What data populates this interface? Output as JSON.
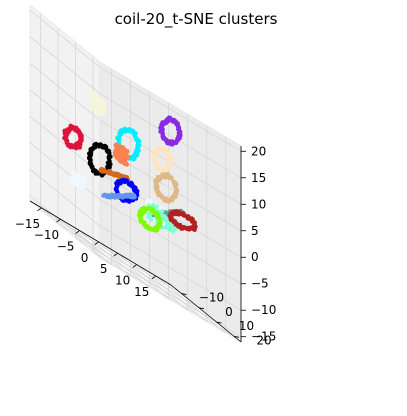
{
  "chart_data": {
    "type": "scatter",
    "projection": "3d",
    "title": "coil-20_t-SNE clusters",
    "xlabel": "",
    "ylabel": "",
    "zlabel": "",
    "grid": true,
    "xlim": [
      -18,
      19
    ],
    "ylim": [
      -16,
      24
    ],
    "zlim": [
      -16,
      21
    ],
    "x_ticks": [
      -15,
      -10,
      -5,
      0,
      5,
      10,
      15
    ],
    "y_ticks": [
      -10,
      0,
      10,
      20
    ],
    "z_ticks": [
      -15,
      -10,
      -5,
      0,
      5,
      10,
      15,
      20
    ],
    "x_tick_labels": [
      "−15",
      "−10",
      "−5",
      "0",
      "5",
      "10",
      "15"
    ],
    "y_tick_labels": [
      "−10",
      "0",
      "10",
      "20"
    ],
    "z_tick_labels": [
      "−15",
      "−10",
      "−5",
      "0",
      "5",
      "10",
      "15",
      "20"
    ],
    "clusters": [
      {
        "color": "#8a2be2",
        "shape": "ring",
        "center": [
          6,
          12,
          15
        ],
        "radius": [
          2.2,
          1.5,
          2.5
        ]
      },
      {
        "color": "#f5f5dc",
        "shape": "blob",
        "center": [
          -14,
          14,
          12
        ],
        "radius": [
          1.5,
          1.0,
          1.5
        ]
      },
      {
        "color": "#00eeff",
        "shape": "ring",
        "center": [
          -6,
          14,
          8
        ],
        "radius": [
          2.5,
          1.5,
          3.0
        ]
      },
      {
        "color": "#ffe4c4",
        "shape": "ring",
        "center": [
          2,
          16,
          9
        ],
        "radius": [
          2.0,
          1.0,
          2.0
        ]
      },
      {
        "color": "#ff8050",
        "shape": "blob",
        "center": [
          -6,
          10,
          5
        ],
        "radius": [
          1.5,
          1.0,
          1.5
        ]
      },
      {
        "color": "#deb887",
        "shape": "ring",
        "center": [
          4,
          14,
          4
        ],
        "radius": [
          2.5,
          1.5,
          2.5
        ]
      },
      {
        "color": "#000000",
        "shape": "ring",
        "center": [
          -8,
          2,
          1
        ],
        "radius": [
          2.5,
          2.0,
          3.0
        ]
      },
      {
        "color": "#dc143c",
        "shape": "ring",
        "center": [
          -14,
          0,
          2
        ],
        "radius": [
          2.0,
          1.5,
          2.0
        ]
      },
      {
        "color": "#d2691e",
        "shape": "line",
        "center": [
          -5,
          4,
          0
        ],
        "radius": [
          3.0,
          1.5,
          0.8
        ]
      },
      {
        "color": "#f0f8ff",
        "shape": "blob",
        "center": [
          2,
          12,
          -2
        ],
        "radius": [
          2.0,
          1.0,
          1.5
        ]
      },
      {
        "color": "#0000ff",
        "shape": "ring",
        "center": [
          -1,
          2,
          -2
        ],
        "radius": [
          2.5,
          2.0,
          2.0
        ]
      },
      {
        "color": "#5f9ea0",
        "shape": "line",
        "center": [
          6,
          10,
          -1
        ],
        "radius": [
          3.0,
          2.0,
          2.0
        ]
      },
      {
        "color": "#6495ed",
        "shape": "line",
        "center": [
          -1,
          -2,
          -4
        ],
        "radius": [
          3.0,
          2.5,
          2.0
        ]
      },
      {
        "color": "#7fffd4",
        "shape": "blob",
        "center": [
          7,
          4,
          -3
        ],
        "radius": [
          4.0,
          2.5,
          1.5
        ]
      },
      {
        "color": "#b22222",
        "shape": "ring",
        "center": [
          12,
          6,
          -1
        ],
        "radius": [
          3.0,
          2.0,
          1.5
        ]
      },
      {
        "color": "#7cfc00",
        "shape": "ring",
        "center": [
          8,
          -4,
          -5
        ],
        "radius": [
          2.5,
          1.5,
          2.0
        ]
      },
      {
        "color": "#f0f8ff",
        "shape": "blob",
        "center": [
          -10,
          -6,
          -6
        ],
        "radius": [
          1.5,
          1.0,
          1.0
        ]
      }
    ]
  }
}
